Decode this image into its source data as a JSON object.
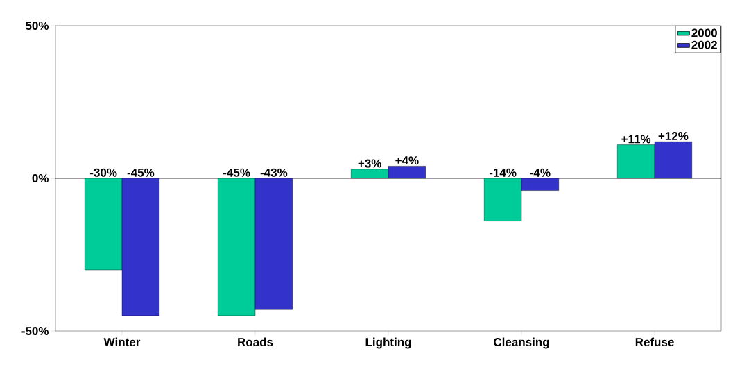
{
  "chart_data": {
    "type": "bar",
    "categories": [
      "Winter",
      "Roads",
      "Lighting",
      "Cleansing",
      "Refuse"
    ],
    "series": [
      {
        "name": "2000",
        "color": "#00cc99",
        "values": [
          -30,
          -45,
          3,
          -14,
          11
        ],
        "value_labels": [
          "-30%",
          "-45%",
          "+3%",
          "-14%",
          "+11%"
        ]
      },
      {
        "name": "2002",
        "color": "#3333cc",
        "values": [
          -45,
          -43,
          4,
          -4,
          12
        ],
        "value_labels": [
          "-45%",
          "-43%",
          "+4%",
          "-4%",
          "+12%"
        ]
      }
    ],
    "ylim": [
      -50,
      50
    ],
    "yticks": [
      {
        "value": -50,
        "label": "-50%"
      },
      {
        "value": 0,
        "label": "0%"
      },
      {
        "value": 50,
        "label": "50%"
      }
    ],
    "legend": "top right"
  }
}
